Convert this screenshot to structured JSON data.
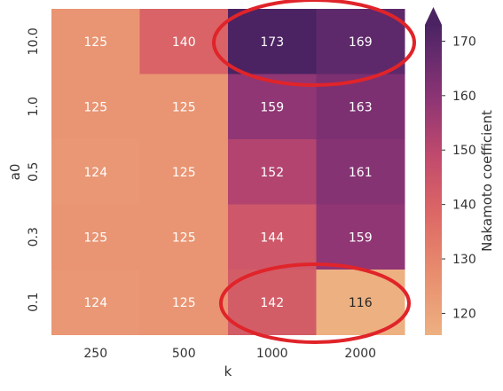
{
  "chart_data": {
    "type": "heatmap",
    "xlabel": "k",
    "ylabel": "a0",
    "x_categories": [
      "250",
      "500",
      "1000",
      "2000"
    ],
    "y_categories": [
      "10.0",
      "1.0",
      "0.5",
      "0.3",
      "0.1"
    ],
    "values": [
      [
        125,
        140,
        173,
        169
      ],
      [
        125,
        125,
        159,
        163
      ],
      [
        124,
        125,
        152,
        161
      ],
      [
        125,
        125,
        144,
        159
      ],
      [
        124,
        125,
        142,
        116
      ]
    ],
    "colorbar": {
      "label": "Nakamoto coefficient",
      "ticks": [
        "120",
        "130",
        "140",
        "150",
        "160",
        "170"
      ],
      "range": [
        116,
        173
      ],
      "extend": "max",
      "colormap": "flare",
      "low_color": "#EDB081",
      "high_color": "#4B2362"
    },
    "annotations": [
      {
        "shape": "ellipse",
        "color": "#E0242A",
        "encloses": "a0=10.0, k=1000 and k=2000"
      },
      {
        "shape": "ellipse",
        "color": "#E0242A",
        "encloses": "a0=0.1, k=1000 and k=2000"
      }
    ],
    "grid": false,
    "legend": "colorbar right"
  }
}
